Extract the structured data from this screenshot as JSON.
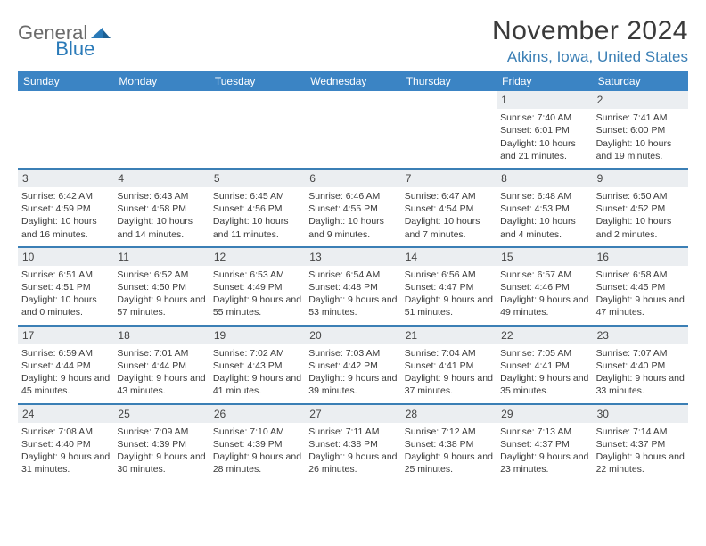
{
  "logo": {
    "general": "General",
    "blue": "Blue"
  },
  "title": "November 2024",
  "location": "Atkins, Iowa, United States",
  "weekdays": [
    "Sunday",
    "Monday",
    "Tuesday",
    "Wednesday",
    "Thursday",
    "Friday",
    "Saturday"
  ],
  "colors": {
    "header_bg": "#3b84c4",
    "rule": "#3b7fb5",
    "daynum_bg": "#ebeef1",
    "text": "#3a3a3a",
    "logo_gray": "#6b6b6b",
    "logo_blue": "#2a7ab8"
  },
  "weeks": [
    [
      null,
      null,
      null,
      null,
      null,
      {
        "n": "1",
        "sr": "7:40 AM",
        "ss": "6:01 PM",
        "dl": "10 hours and 21 minutes."
      },
      {
        "n": "2",
        "sr": "7:41 AM",
        "ss": "6:00 PM",
        "dl": "10 hours and 19 minutes."
      }
    ],
    [
      {
        "n": "3",
        "sr": "6:42 AM",
        "ss": "4:59 PM",
        "dl": "10 hours and 16 minutes."
      },
      {
        "n": "4",
        "sr": "6:43 AM",
        "ss": "4:58 PM",
        "dl": "10 hours and 14 minutes."
      },
      {
        "n": "5",
        "sr": "6:45 AM",
        "ss": "4:56 PM",
        "dl": "10 hours and 11 minutes."
      },
      {
        "n": "6",
        "sr": "6:46 AM",
        "ss": "4:55 PM",
        "dl": "10 hours and 9 minutes."
      },
      {
        "n": "7",
        "sr": "6:47 AM",
        "ss": "4:54 PM",
        "dl": "10 hours and 7 minutes."
      },
      {
        "n": "8",
        "sr": "6:48 AM",
        "ss": "4:53 PM",
        "dl": "10 hours and 4 minutes."
      },
      {
        "n": "9",
        "sr": "6:50 AM",
        "ss": "4:52 PM",
        "dl": "10 hours and 2 minutes."
      }
    ],
    [
      {
        "n": "10",
        "sr": "6:51 AM",
        "ss": "4:51 PM",
        "dl": "10 hours and 0 minutes."
      },
      {
        "n": "11",
        "sr": "6:52 AM",
        "ss": "4:50 PM",
        "dl": "9 hours and 57 minutes."
      },
      {
        "n": "12",
        "sr": "6:53 AM",
        "ss": "4:49 PM",
        "dl": "9 hours and 55 minutes."
      },
      {
        "n": "13",
        "sr": "6:54 AM",
        "ss": "4:48 PM",
        "dl": "9 hours and 53 minutes."
      },
      {
        "n": "14",
        "sr": "6:56 AM",
        "ss": "4:47 PM",
        "dl": "9 hours and 51 minutes."
      },
      {
        "n": "15",
        "sr": "6:57 AM",
        "ss": "4:46 PM",
        "dl": "9 hours and 49 minutes."
      },
      {
        "n": "16",
        "sr": "6:58 AM",
        "ss": "4:45 PM",
        "dl": "9 hours and 47 minutes."
      }
    ],
    [
      {
        "n": "17",
        "sr": "6:59 AM",
        "ss": "4:44 PM",
        "dl": "9 hours and 45 minutes."
      },
      {
        "n": "18",
        "sr": "7:01 AM",
        "ss": "4:44 PM",
        "dl": "9 hours and 43 minutes."
      },
      {
        "n": "19",
        "sr": "7:02 AM",
        "ss": "4:43 PM",
        "dl": "9 hours and 41 minutes."
      },
      {
        "n": "20",
        "sr": "7:03 AM",
        "ss": "4:42 PM",
        "dl": "9 hours and 39 minutes."
      },
      {
        "n": "21",
        "sr": "7:04 AM",
        "ss": "4:41 PM",
        "dl": "9 hours and 37 minutes."
      },
      {
        "n": "22",
        "sr": "7:05 AM",
        "ss": "4:41 PM",
        "dl": "9 hours and 35 minutes."
      },
      {
        "n": "23",
        "sr": "7:07 AM",
        "ss": "4:40 PM",
        "dl": "9 hours and 33 minutes."
      }
    ],
    [
      {
        "n": "24",
        "sr": "7:08 AM",
        "ss": "4:40 PM",
        "dl": "9 hours and 31 minutes."
      },
      {
        "n": "25",
        "sr": "7:09 AM",
        "ss": "4:39 PM",
        "dl": "9 hours and 30 minutes."
      },
      {
        "n": "26",
        "sr": "7:10 AM",
        "ss": "4:39 PM",
        "dl": "9 hours and 28 minutes."
      },
      {
        "n": "27",
        "sr": "7:11 AM",
        "ss": "4:38 PM",
        "dl": "9 hours and 26 minutes."
      },
      {
        "n": "28",
        "sr": "7:12 AM",
        "ss": "4:38 PM",
        "dl": "9 hours and 25 minutes."
      },
      {
        "n": "29",
        "sr": "7:13 AM",
        "ss": "4:37 PM",
        "dl": "9 hours and 23 minutes."
      },
      {
        "n": "30",
        "sr": "7:14 AM",
        "ss": "4:37 PM",
        "dl": "9 hours and 22 minutes."
      }
    ]
  ],
  "labels": {
    "sunrise": "Sunrise:",
    "sunset": "Sunset:",
    "daylight": "Daylight:"
  }
}
